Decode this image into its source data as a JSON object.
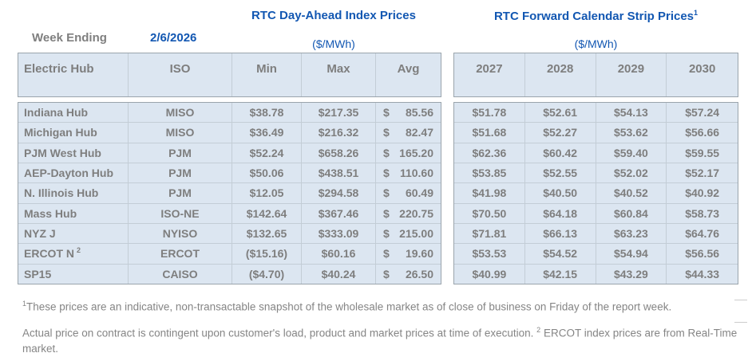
{
  "header": {
    "week_ending_label": "Week Ending",
    "week_ending_value": "2/6/2026",
    "left_title": "RTC Day-Ahead Index Prices",
    "left_subtitle": "($/MWh)",
    "right_title": "RTC Forward Calendar Strip Prices",
    "right_title_sup": "1",
    "right_subtitle": "($/MWh)"
  },
  "table": {
    "left_columns": [
      "Electric Hub",
      "ISO",
      "Min",
      "Max",
      "Avg"
    ],
    "right_columns": [
      "2027",
      "2028",
      "2029",
      "2030"
    ],
    "avg_currency": "$",
    "rows": [
      {
        "hub": "Indiana Hub",
        "iso": "MISO",
        "min": "$38.78",
        "max": "$217.35",
        "avg": "85.56",
        "y2027": "$51.78",
        "y2028": "$52.61",
        "y2029": "$54.13",
        "y2030": "$57.24"
      },
      {
        "hub": "Michigan Hub",
        "iso": "MISO",
        "min": "$36.49",
        "max": "$216.32",
        "avg": "82.47",
        "y2027": "$51.68",
        "y2028": "$52.27",
        "y2029": "$53.62",
        "y2030": "$56.66"
      },
      {
        "hub": "PJM West Hub",
        "iso": "PJM",
        "min": "$52.24",
        "max": "$658.26",
        "avg": "165.20",
        "y2027": "$62.36",
        "y2028": "$60.42",
        "y2029": "$59.40",
        "y2030": "$59.55"
      },
      {
        "hub": "AEP-Dayton Hub",
        "iso": "PJM",
        "min": "$50.06",
        "max": "$438.51",
        "avg": "110.60",
        "y2027": "$53.85",
        "y2028": "$52.55",
        "y2029": "$52.02",
        "y2030": "$52.17"
      },
      {
        "hub": "N. Illinois Hub",
        "iso": "PJM",
        "min": "$12.05",
        "max": "$294.58",
        "avg": "60.49",
        "y2027": "$41.98",
        "y2028": "$40.50",
        "y2029": "$40.52",
        "y2030": "$40.92"
      },
      {
        "hub": "Mass Hub",
        "iso": "ISO-NE",
        "min": "$142.64",
        "max": "$367.46",
        "avg": "220.75",
        "y2027": "$70.50",
        "y2028": "$64.18",
        "y2029": "$60.84",
        "y2030": "$58.73"
      },
      {
        "hub": "NYZ J",
        "iso": "NYISO",
        "min": "$132.65",
        "max": "$333.09",
        "avg": "215.00",
        "y2027": "$71.81",
        "y2028": "$66.13",
        "y2029": "$63.23",
        "y2030": "$64.76"
      },
      {
        "hub": "ERCOT N",
        "hub_sup": "2",
        "iso": "ERCOT",
        "min": "($15.16)",
        "max": "$60.16",
        "avg": "19.60",
        "y2027": "$53.53",
        "y2028": "$54.52",
        "y2029": "$54.94",
        "y2030": "$56.56"
      },
      {
        "hub": "SP15",
        "iso": "CAISO",
        "min": "($4.70)",
        "max": "$40.24",
        "avg": "26.50",
        "y2027": "$40.99",
        "y2028": "$42.15",
        "y2029": "$43.29",
        "y2030": "$44.33"
      }
    ]
  },
  "footnotes": {
    "fn1_sup": "1",
    "fn1_text": "These prices are an indicative, non-transactable snapshot of the wholesale market as of close of business on Friday of the report week.",
    "fn2_text_a": "Actual price on contract is contingent upon customer's load, product and market prices at time of execution. ",
    "fn2_sup": "2",
    "fn2_text_b": " ERCOT index prices are from Real-Time market."
  },
  "colors": {
    "accent_blue": "#1257b2",
    "cell_background": "#dce6f1",
    "outer_border": "#9aa4ac",
    "gridline": "#c3cdd6",
    "text_gray": "#7e7e7e",
    "footnote_gray": "#858585"
  }
}
